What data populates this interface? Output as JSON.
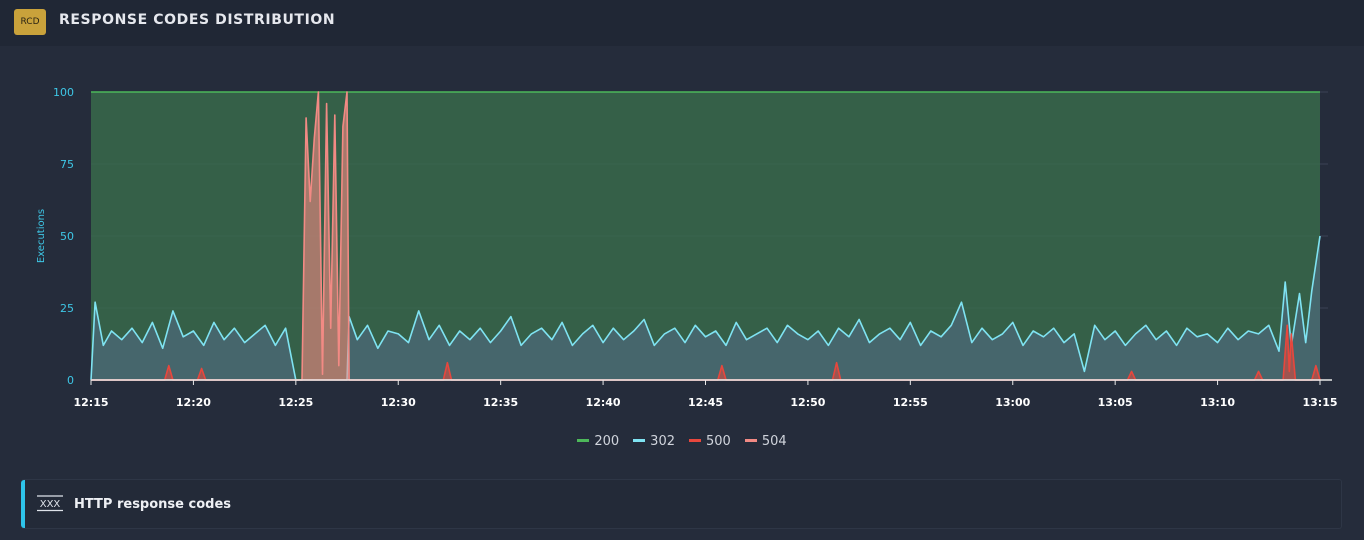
{
  "header": {
    "badge": "RCD",
    "title": "RESPONSE CODES DISTRIBUTION"
  },
  "footer": {
    "icon_text": "XXX",
    "label": "HTTP response codes"
  },
  "colors": {
    "c200": "#4db85a",
    "c302": "#7fe3f2",
    "c500": "#e8473d",
    "c504": "#f28a84",
    "axis_label": "#3ec7e6"
  },
  "chart_data": {
    "type": "area",
    "title": "",
    "ylabel": "Executions",
    "xlabel": "",
    "ylim": [
      0,
      100
    ],
    "yticks": [
      0,
      25,
      50,
      75,
      100
    ],
    "x_ticks": [
      "12:15",
      "12:20",
      "12:25",
      "12:30",
      "12:35",
      "12:40",
      "12:45",
      "12:50",
      "12:55",
      "13:00",
      "13:05",
      "13:10",
      "13:15"
    ],
    "x_start": "12:15",
    "x_end": "13:15",
    "grid": true,
    "legend_position": "bottom",
    "series": [
      {
        "name": "200",
        "color": "#4db85a",
        "points": [
          [
            0,
            100
          ],
          [
            60,
            100
          ]
        ]
      },
      {
        "name": "302",
        "color": "#7fe3f2",
        "points": [
          [
            0,
            0
          ],
          [
            0.2,
            27
          ],
          [
            0.6,
            12
          ],
          [
            1,
            17
          ],
          [
            1.5,
            14
          ],
          [
            2,
            18
          ],
          [
            2.5,
            13
          ],
          [
            3,
            20
          ],
          [
            3.5,
            11
          ],
          [
            4,
            24
          ],
          [
            4.5,
            15
          ],
          [
            5,
            17
          ],
          [
            5.5,
            12
          ],
          [
            6,
            20
          ],
          [
            6.5,
            14
          ],
          [
            7,
            18
          ],
          [
            7.5,
            13
          ],
          [
            8,
            16
          ],
          [
            8.5,
            19
          ],
          [
            9,
            12
          ],
          [
            9.5,
            18
          ],
          [
            10,
            0
          ],
          [
            10.5,
            0
          ],
          [
            11,
            0
          ],
          [
            11.5,
            0
          ],
          [
            12,
            0
          ],
          [
            12.5,
            0
          ],
          [
            12.6,
            22
          ],
          [
            13,
            14
          ],
          [
            13.5,
            19
          ],
          [
            14,
            11
          ],
          [
            14.5,
            17
          ],
          [
            15,
            16
          ],
          [
            15.5,
            13
          ],
          [
            16,
            24
          ],
          [
            16.5,
            14
          ],
          [
            17,
            19
          ],
          [
            17.5,
            12
          ],
          [
            18,
            17
          ],
          [
            18.5,
            14
          ],
          [
            19,
            18
          ],
          [
            19.5,
            13
          ],
          [
            20,
            17
          ],
          [
            20.5,
            22
          ],
          [
            21,
            12
          ],
          [
            21.5,
            16
          ],
          [
            22,
            18
          ],
          [
            22.5,
            14
          ],
          [
            23,
            20
          ],
          [
            23.5,
            12
          ],
          [
            24,
            16
          ],
          [
            24.5,
            19
          ],
          [
            25,
            13
          ],
          [
            25.5,
            18
          ],
          [
            26,
            14
          ],
          [
            26.5,
            17
          ],
          [
            27,
            21
          ],
          [
            27.5,
            12
          ],
          [
            28,
            16
          ],
          [
            28.5,
            18
          ],
          [
            29,
            13
          ],
          [
            29.5,
            19
          ],
          [
            30,
            15
          ],
          [
            30.5,
            17
          ],
          [
            31,
            12
          ],
          [
            31.5,
            20
          ],
          [
            32,
            14
          ],
          [
            32.5,
            16
          ],
          [
            33,
            18
          ],
          [
            33.5,
            13
          ],
          [
            34,
            19
          ],
          [
            34.5,
            16
          ],
          [
            35,
            14
          ],
          [
            35.5,
            17
          ],
          [
            36,
            12
          ],
          [
            36.5,
            18
          ],
          [
            37,
            15
          ],
          [
            37.5,
            21
          ],
          [
            38,
            13
          ],
          [
            38.5,
            16
          ],
          [
            39,
            18
          ],
          [
            39.5,
            14
          ],
          [
            40,
            20
          ],
          [
            40.5,
            12
          ],
          [
            41,
            17
          ],
          [
            41.5,
            15
          ],
          [
            42,
            19
          ],
          [
            42.5,
            27
          ],
          [
            43,
            13
          ],
          [
            43.5,
            18
          ],
          [
            44,
            14
          ],
          [
            44.5,
            16
          ],
          [
            45,
            20
          ],
          [
            45.5,
            12
          ],
          [
            46,
            17
          ],
          [
            46.5,
            15
          ],
          [
            47,
            18
          ],
          [
            47.5,
            13
          ],
          [
            48,
            16
          ],
          [
            48.5,
            3
          ],
          [
            49,
            19
          ],
          [
            49.5,
            14
          ],
          [
            50,
            17
          ],
          [
            50.5,
            12
          ],
          [
            51,
            16
          ],
          [
            51.5,
            19
          ],
          [
            52,
            14
          ],
          [
            52.5,
            17
          ],
          [
            53,
            12
          ],
          [
            53.5,
            18
          ],
          [
            54,
            15
          ],
          [
            54.5,
            16
          ],
          [
            55,
            13
          ],
          [
            55.5,
            18
          ],
          [
            56,
            14
          ],
          [
            56.5,
            17
          ],
          [
            57,
            16
          ],
          [
            57.5,
            19
          ],
          [
            58,
            10
          ],
          [
            58.3,
            34
          ],
          [
            58.6,
            12
          ],
          [
            59,
            30
          ],
          [
            59.3,
            13
          ],
          [
            59.6,
            31
          ],
          [
            60,
            50
          ]
        ]
      },
      {
        "name": "500",
        "color": "#e8473d",
        "points": [
          [
            0,
            0
          ],
          [
            3.6,
            0
          ],
          [
            3.8,
            5
          ],
          [
            4.0,
            0
          ],
          [
            5.2,
            0
          ],
          [
            5.4,
            4
          ],
          [
            5.6,
            0
          ],
          [
            17.2,
            0
          ],
          [
            17.4,
            6
          ],
          [
            17.6,
            0
          ],
          [
            30.6,
            0
          ],
          [
            30.8,
            5
          ],
          [
            31.0,
            0
          ],
          [
            36.2,
            0
          ],
          [
            36.4,
            6
          ],
          [
            36.6,
            0
          ],
          [
            50.6,
            0
          ],
          [
            50.8,
            3
          ],
          [
            51.0,
            0
          ],
          [
            56.8,
            0
          ],
          [
            57.0,
            3
          ],
          [
            57.2,
            0
          ],
          [
            58.2,
            0
          ],
          [
            58.4,
            19
          ],
          [
            58.5,
            3
          ],
          [
            58.6,
            16
          ],
          [
            58.8,
            0
          ],
          [
            59.6,
            0
          ],
          [
            59.8,
            5
          ],
          [
            60,
            0
          ]
        ]
      },
      {
        "name": "504",
        "color": "#f28a84",
        "points": [
          [
            0,
            0
          ],
          [
            10.3,
            0
          ],
          [
            10.5,
            91
          ],
          [
            10.7,
            62
          ],
          [
            10.9,
            84
          ],
          [
            11.1,
            100
          ],
          [
            11.3,
            2
          ],
          [
            11.5,
            96
          ],
          [
            11.7,
            18
          ],
          [
            11.9,
            92
          ],
          [
            12.1,
            5
          ],
          [
            12.3,
            88
          ],
          [
            12.5,
            100
          ],
          [
            12.6,
            0
          ],
          [
            60,
            0
          ]
        ]
      }
    ]
  }
}
